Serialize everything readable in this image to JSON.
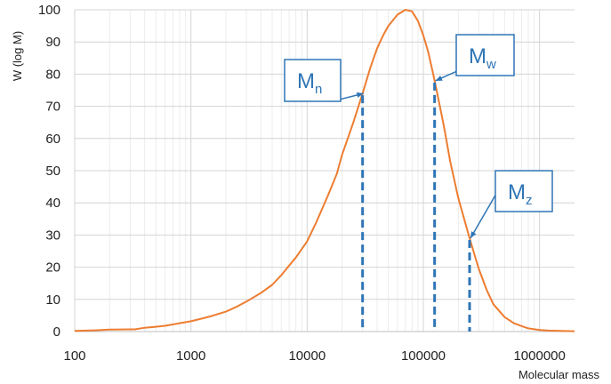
{
  "chart_data": {
    "type": "line",
    "xlabel": "Molecular mass",
    "ylabel": "W (log M)",
    "xscale": "log",
    "xlim": [
      100,
      2000000
    ],
    "ylim": [
      0,
      100
    ],
    "xticks": [
      100,
      1000,
      10000,
      100000,
      1000000
    ],
    "xtick_labels": [
      "100",
      "1000",
      "10000",
      "100000",
      "1000000"
    ],
    "yticks": [
      0,
      10,
      20,
      30,
      40,
      50,
      60,
      70,
      80,
      90,
      100
    ],
    "ytick_labels": [
      "0",
      "10",
      "20",
      "30",
      "40",
      "50",
      "60",
      "70",
      "80",
      "90",
      "100"
    ],
    "grid": true,
    "series": [
      {
        "color": "#ed7d31",
        "x": [
          100,
          150,
          200,
          300,
          330,
          400,
          500,
          600,
          700,
          800,
          1000,
          1200,
          1500,
          2000,
          2500,
          3000,
          4000,
          5000,
          6000,
          7000,
          8000,
          10000,
          12000,
          15000,
          18000,
          20000,
          25000,
          30000,
          35000,
          40000,
          45000,
          50000,
          60000,
          70000,
          80000,
          90000,
          100000,
          110000,
          120000,
          130000,
          150000,
          170000,
          200000,
          250000,
          300000,
          350000,
          400000,
          500000,
          600000,
          700000,
          800000,
          1000000,
          1200000,
          1500000,
          2000000
        ],
        "y": [
          0.2,
          0.4,
          0.6,
          0.7,
          0.7,
          1.2,
          1.5,
          1.8,
          2.2,
          2.6,
          3.2,
          3.9,
          4.8,
          6.2,
          7.8,
          9.3,
          12.0,
          14.5,
          17.5,
          20.5,
          23.0,
          28.0,
          34.0,
          42.0,
          49.0,
          55.0,
          65.0,
          74.0,
          82.0,
          88.0,
          92.0,
          95.0,
          98.5,
          100.0,
          99.5,
          96.5,
          92.0,
          87.0,
          81.0,
          75.0,
          64.0,
          53.0,
          41.5,
          29.0,
          19.5,
          13.0,
          8.5,
          4.5,
          2.6,
          1.7,
          1.0,
          0.5,
          0.3,
          0.2,
          0.1
        ]
      }
    ],
    "annotations": [
      {
        "label": "M",
        "sub": "n",
        "x": 30000
      },
      {
        "label": "M",
        "sub": "w",
        "x": 125000
      },
      {
        "label": "M",
        "sub": "z",
        "x": 250000
      }
    ],
    "colors": {
      "curve": "#ed7d31",
      "annotation": "#2e75b6"
    }
  }
}
